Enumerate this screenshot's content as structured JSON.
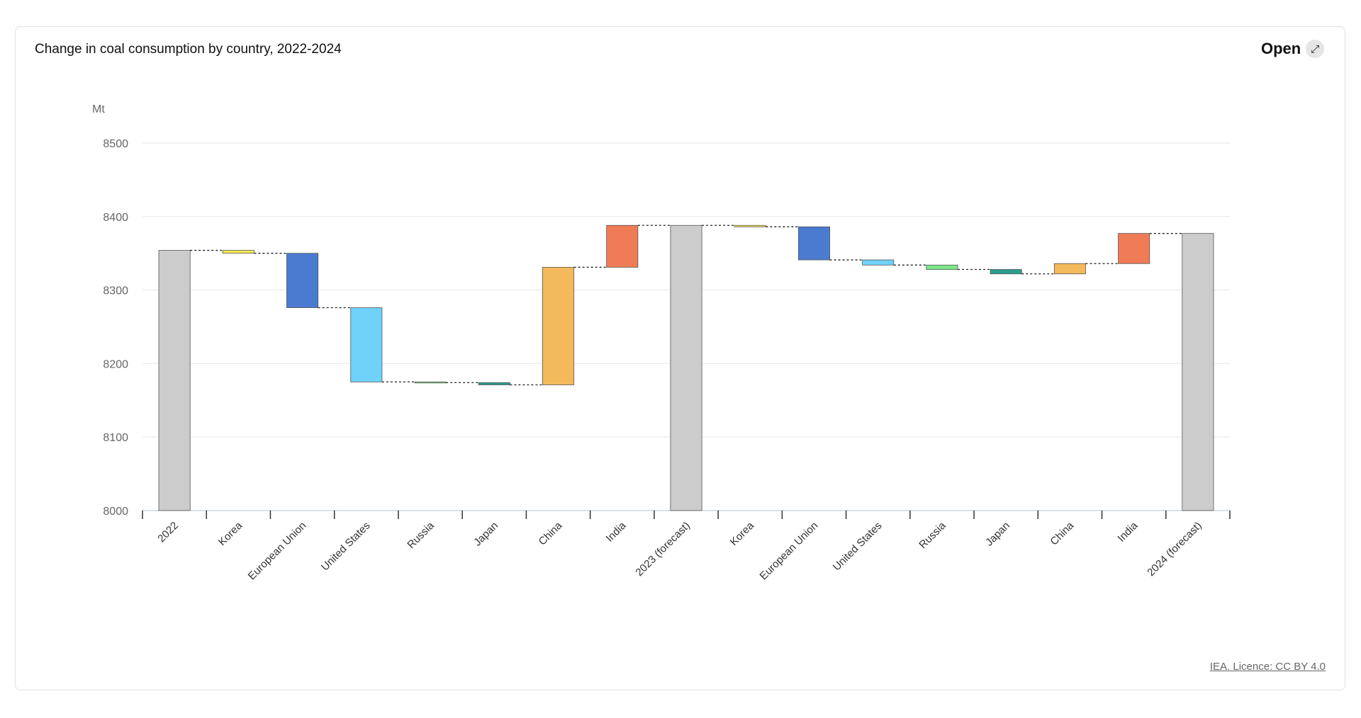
{
  "header": {
    "title": "Change in coal consumption by country, 2022-2024",
    "open_label": "Open",
    "open_icon": "expand-arrow-icon"
  },
  "footer": {
    "credit": "IEA. Licence: CC BY 4.0"
  },
  "chart_data": {
    "type": "waterfall",
    "title": "Change in coal consumption by country, 2022-2024",
    "ylabel": "Mt",
    "ylim": [
      8000,
      8500
    ],
    "yticks": [
      8000,
      8100,
      8200,
      8300,
      8400,
      8500
    ],
    "grid": true,
    "categories": [
      "2022",
      "Korea",
      "European Union",
      "United States",
      "Russia",
      "Japan",
      "China",
      "India",
      "2023 (forecast)",
      "Korea",
      "European Union",
      "United States",
      "Russia",
      "Japan",
      "China",
      "India",
      "2024 (forecast)"
    ],
    "bars": [
      {
        "kind": "total",
        "value": 8354,
        "color": "#cccccc"
      },
      {
        "kind": "delta",
        "value": -4,
        "color": "#f5e94f"
      },
      {
        "kind": "delta",
        "value": -74,
        "color": "#4a7bd0"
      },
      {
        "kind": "delta",
        "value": -101,
        "color": "#6fd2fa"
      },
      {
        "kind": "delta",
        "value": -1,
        "color": "#7de88a"
      },
      {
        "kind": "delta",
        "value": -3,
        "color": "#2a9d8f"
      },
      {
        "kind": "delta",
        "value": 160,
        "color": "#f4b95a"
      },
      {
        "kind": "delta",
        "value": 57,
        "color": "#ef7b57"
      },
      {
        "kind": "total",
        "value": 8388,
        "color": "#cccccc"
      },
      {
        "kind": "delta",
        "value": -2,
        "color": "#f5e94f"
      },
      {
        "kind": "delta",
        "value": -45,
        "color": "#4a7bd0"
      },
      {
        "kind": "delta",
        "value": -7,
        "color": "#6fd2fa"
      },
      {
        "kind": "delta",
        "value": -6,
        "color": "#7de88a"
      },
      {
        "kind": "delta",
        "value": -6,
        "color": "#2a9d8f"
      },
      {
        "kind": "delta",
        "value": 14,
        "color": "#f4b95a"
      },
      {
        "kind": "delta",
        "value": 41,
        "color": "#ef7b57"
      },
      {
        "kind": "total",
        "value": 8377,
        "color": "#cccccc"
      }
    ]
  }
}
